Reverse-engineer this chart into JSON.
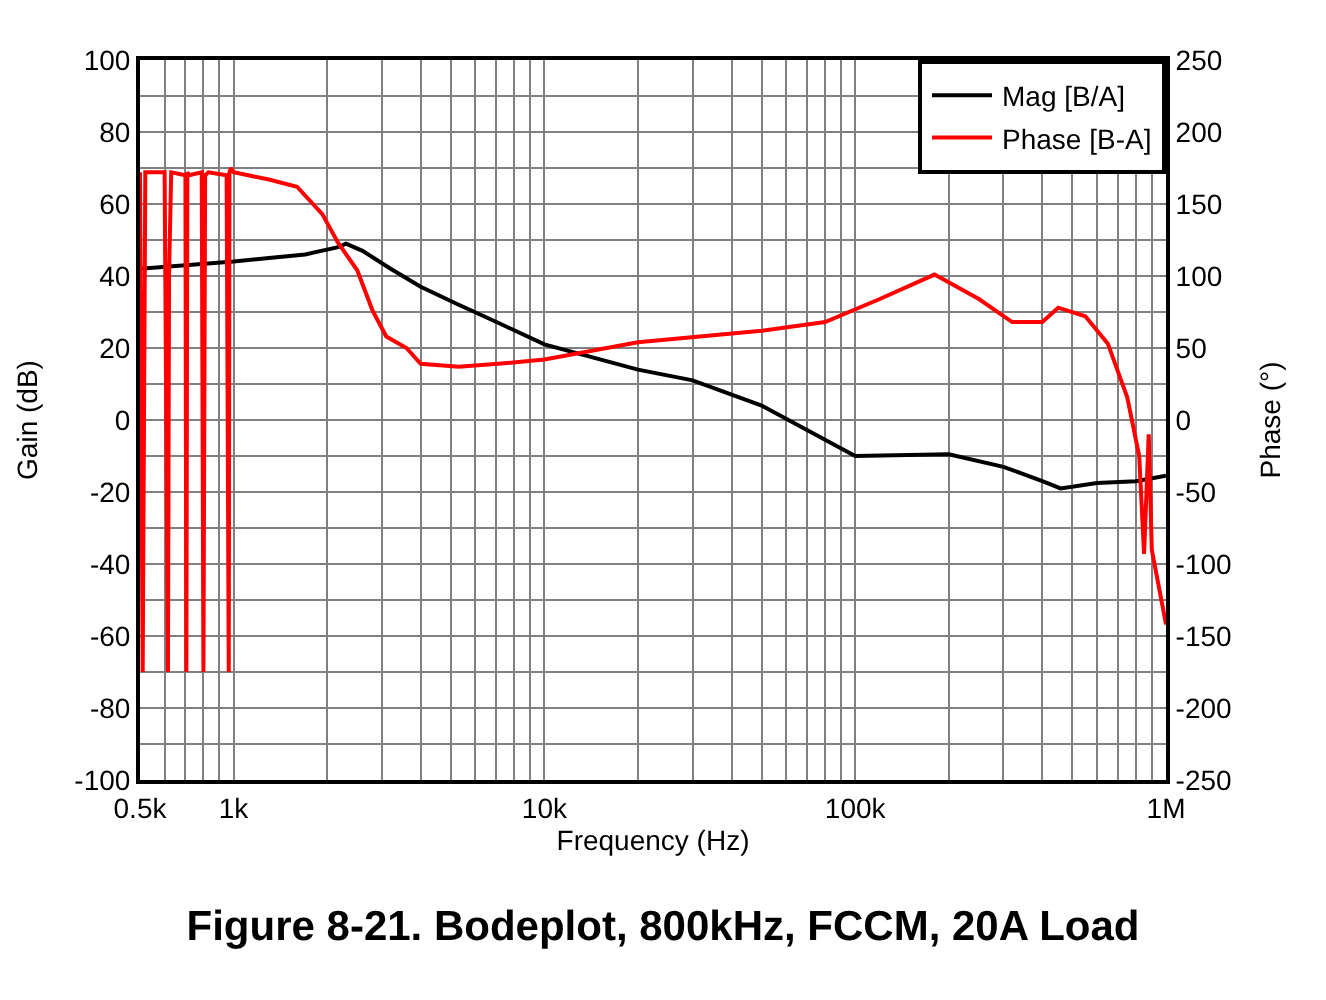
{
  "chart_data": {
    "type": "line",
    "title": "Figure 8-21. Bodeplot, 800kHz, FCCM, 20A Load",
    "xlabel": "Frequency (Hz)",
    "ylabel": "Gain (dB)",
    "y2label": "Phase (°)",
    "log": "x",
    "xlim": [
      500,
      1000000
    ],
    "xticks": [
      {
        "value": 500,
        "label": "0.5k"
      },
      {
        "value": 600,
        "label": null
      },
      {
        "value": 700,
        "label": null
      },
      {
        "value": 800,
        "label": null
      },
      {
        "value": 900,
        "label": null
      },
      {
        "value": 1000,
        "label": "1k"
      },
      {
        "value": 2000,
        "label": null
      },
      {
        "value": 3000,
        "label": null
      },
      {
        "value": 4000,
        "label": null
      },
      {
        "value": 5000,
        "label": null
      },
      {
        "value": 6000,
        "label": null
      },
      {
        "value": 7000,
        "label": null
      },
      {
        "value": 8000,
        "label": null
      },
      {
        "value": 9000,
        "label": null
      },
      {
        "value": 10000,
        "label": "10k"
      },
      {
        "value": 20000,
        "label": null
      },
      {
        "value": 30000,
        "label": null
      },
      {
        "value": 40000,
        "label": null
      },
      {
        "value": 50000,
        "label": null
      },
      {
        "value": 60000,
        "label": null
      },
      {
        "value": 70000,
        "label": null
      },
      {
        "value": 80000,
        "label": null
      },
      {
        "value": 90000,
        "label": null
      },
      {
        "value": 100000,
        "label": "100k"
      },
      {
        "value": 200000,
        "label": null
      },
      {
        "value": 300000,
        "label": null
      },
      {
        "value": 400000,
        "label": null
      },
      {
        "value": 500000,
        "label": null
      },
      {
        "value": 600000,
        "label": null
      },
      {
        "value": 700000,
        "label": null
      },
      {
        "value": 800000,
        "label": null
      },
      {
        "value": 900000,
        "label": null
      },
      {
        "value": 1000000,
        "label": "1M"
      }
    ],
    "ylim": [
      -100,
      100
    ],
    "yticks": [
      -100,
      {
        "value": -90,
        "label": null
      },
      -80,
      {
        "value": -70,
        "label": null
      },
      -60,
      {
        "value": -50,
        "label": null
      },
      -40,
      {
        "value": -30,
        "label": null
      },
      -20,
      {
        "value": -10,
        "label": null
      },
      0,
      {
        "value": 10,
        "label": null
      },
      20,
      {
        "value": 30,
        "label": null
      },
      40,
      {
        "value": 50,
        "label": null
      },
      60,
      {
        "value": 70,
        "label": null
      },
      80,
      {
        "value": 90,
        "label": null
      },
      100
    ],
    "y2lim": [
      -250,
      250
    ],
    "y2ticks": [
      -250,
      -200,
      -150,
      -100,
      -50,
      0,
      50,
      100,
      150,
      200,
      250
    ],
    "grid": true,
    "legend": "top right",
    "line_style": "solid",
    "marker": "none",
    "series": [
      {
        "name": "Mag [B/A]",
        "color": "#000000",
        "x": [
          500,
          700,
          1000,
          1300,
          1700,
          2170,
          2300,
          2600,
          3200,
          4000,
          5300,
          7100,
          10000,
          20000,
          30000,
          50000,
          100000,
          200000,
          300000,
          400000,
          458000,
          600000,
          800000,
          1000000
        ],
        "values": [
          42,
          43,
          44,
          45,
          46,
          48,
          49,
          47,
          42,
          37,
          32,
          27,
          21,
          14,
          11,
          4,
          -10,
          -9.5,
          -13,
          -17,
          -19,
          -17.5,
          -17,
          -15.5
        ]
      },
      {
        "name": "Phase [B-A]",
        "color": "#ff0000",
        "axis": "y2",
        "x": [
          500,
          510,
          520,
          600,
          615,
          620,
          630,
          700,
          705,
          710,
          720,
          790,
          800,
          810,
          830,
          950,
          965,
          970,
          980,
          1000,
          1300,
          1600,
          1930,
          2170,
          2500,
          2800,
          3100,
          3600,
          4000,
          5300,
          7100,
          10000,
          20000,
          50000,
          80000,
          120000,
          180000,
          250000,
          320000,
          400000,
          450000,
          550000,
          650000,
          750000,
          820000,
          850000,
          880000,
          900000,
          1000000
        ],
        "values": [
          172,
          -175,
          172,
          172,
          -175,
          100,
          172,
          170,
          -175,
          172,
          170,
          172,
          -175,
          170,
          172,
          170,
          -175,
          172,
          175,
          172,
          167,
          162,
          143,
          123,
          104,
          76,
          58,
          50,
          39,
          37,
          39,
          42,
          54,
          62,
          68,
          84,
          101,
          84,
          68,
          68,
          78,
          72,
          53,
          16,
          -25,
          -93,
          -10,
          -90,
          -142
        ]
      }
    ]
  }
}
